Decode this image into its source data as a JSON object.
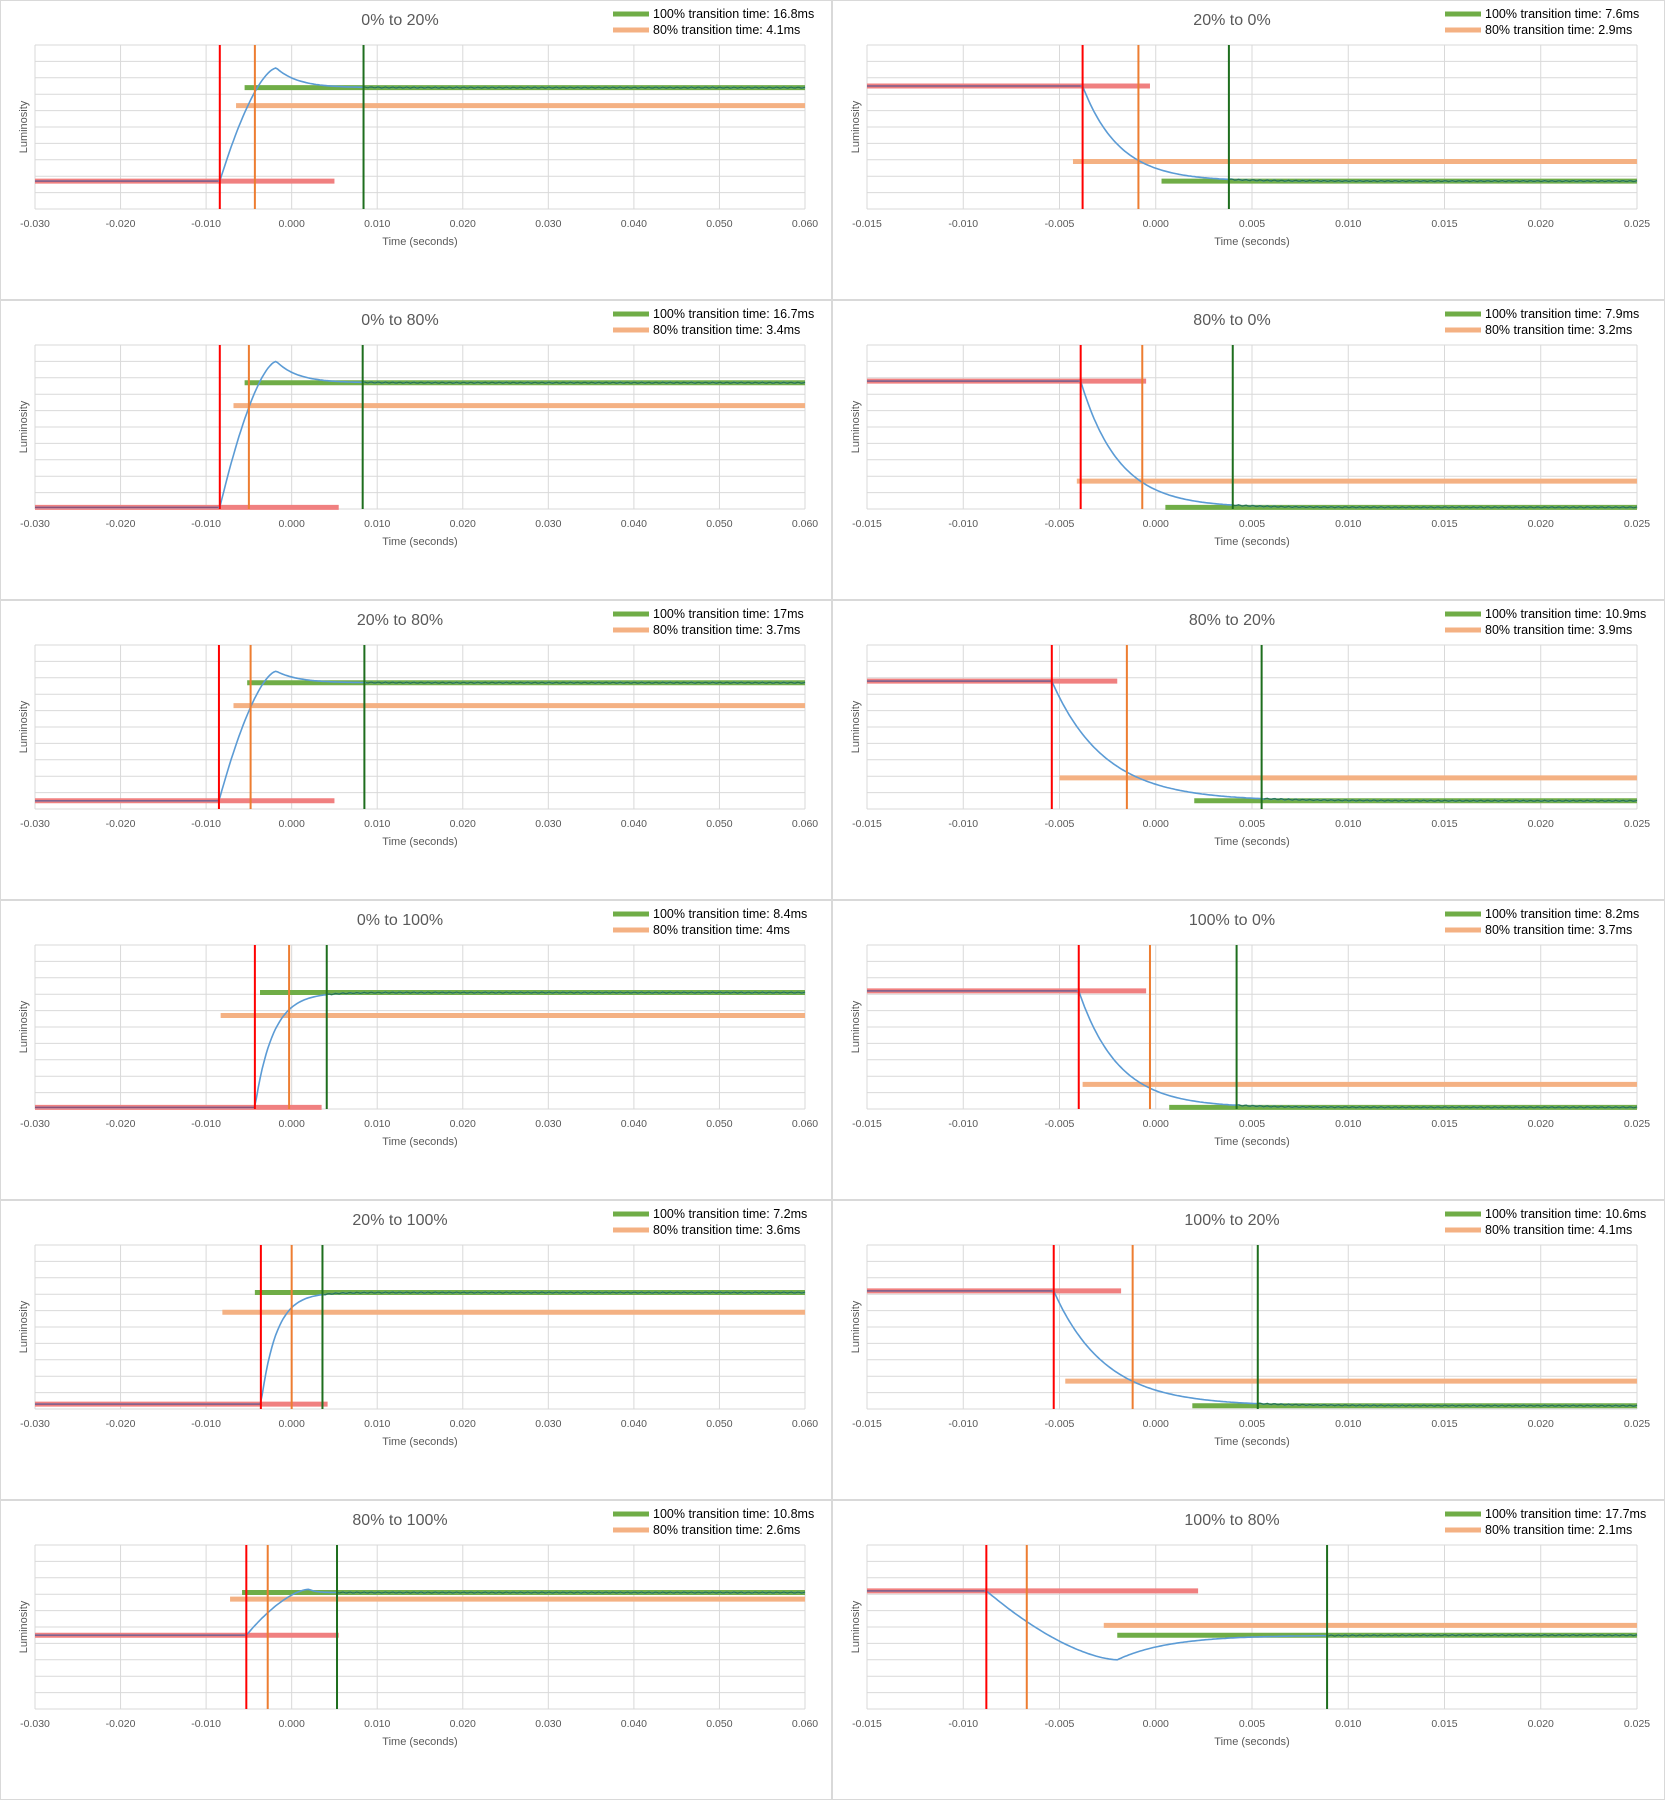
{
  "colors": {
    "curve": "#5b9bd5",
    "green_line": "#70ad47",
    "green_dark": "#1e6e1e",
    "orange_line": "#f4b183",
    "orange_vline": "#ed7d31",
    "red_line": "#f08080",
    "red_vline": "#ff0000",
    "grid": "#d9d9d9"
  },
  "chart_data": [
    {
      "type": "line",
      "title": "0% to 20%",
      "xlabel": "Time (seconds)",
      "ylabel": "Luminosity",
      "legend": [
        "100% transition time: 16.8ms",
        "80% transition time: 4.1ms"
      ],
      "xlim": [
        -0.03,
        0.06
      ],
      "xticks": [
        "-0.030",
        "-0.020",
        "-0.010",
        "0.000",
        "0.010",
        "0.020",
        "0.030",
        "0.040",
        "0.050",
        "0.060"
      ],
      "y_start": 0.17,
      "y_end": 0.74,
      "overshoot": 0.86,
      "peak_t": -0.0018,
      "red_x": -0.0084,
      "orange_x": -0.0043,
      "green_x": 0.0084,
      "red_seg": [
        -0.03,
        0.005
      ],
      "orange_seg": [
        -0.0065,
        0.06
      ],
      "orange_y": 0.63,
      "green_seg": [
        -0.0055,
        0.06
      ]
    },
    {
      "type": "line",
      "title": "20% to 0%",
      "xlabel": "Time (seconds)",
      "ylabel": "Luminosity",
      "legend": [
        "100% transition time: 7.6ms",
        "80% transition time: 2.9ms"
      ],
      "xlim": [
        -0.015,
        0.025
      ],
      "xticks": [
        "-0.015",
        "-0.010",
        "-0.005",
        "0.000",
        "0.005",
        "0.010",
        "0.015",
        "0.020",
        "0.025"
      ],
      "y_start": 0.75,
      "y_end": 0.17,
      "overshoot": null,
      "peak_t": null,
      "red_x": -0.0038,
      "orange_x": -0.0009,
      "green_x": 0.0038,
      "red_seg": [
        -0.015,
        -0.0003
      ],
      "orange_seg": [
        -0.0043,
        0.025
      ],
      "orange_y": 0.29,
      "green_seg": [
        0.0003,
        0.025
      ]
    },
    {
      "type": "line",
      "title": "0% to 80%",
      "xlabel": "Time (seconds)",
      "ylabel": "Luminosity",
      "legend": [
        "100% transition time: 16.7ms",
        "80% transition time: 3.4ms"
      ],
      "xlim": [
        -0.03,
        0.06
      ],
      "xticks": [
        "-0.030",
        "-0.020",
        "-0.010",
        "0.000",
        "0.010",
        "0.020",
        "0.030",
        "0.040",
        "0.050",
        "0.060"
      ],
      "y_start": 0.01,
      "y_end": 0.77,
      "overshoot": 0.9,
      "peak_t": -0.0018,
      "red_x": -0.0084,
      "orange_x": -0.005,
      "green_x": 0.0083,
      "red_seg": [
        -0.03,
        0.0055
      ],
      "orange_seg": [
        -0.0068,
        0.06
      ],
      "orange_y": 0.63,
      "green_seg": [
        -0.0055,
        0.06
      ]
    },
    {
      "type": "line",
      "title": "80% to 0%",
      "xlabel": "Time (seconds)",
      "ylabel": "Luminosity",
      "legend": [
        "100% transition time: 7.9ms",
        "80% transition time: 3.2ms"
      ],
      "xlim": [
        -0.015,
        0.025
      ],
      "xticks": [
        "-0.015",
        "-0.010",
        "-0.005",
        "0.000",
        "0.005",
        "0.010",
        "0.015",
        "0.020",
        "0.025"
      ],
      "y_start": 0.78,
      "y_end": 0.01,
      "overshoot": null,
      "peak_t": null,
      "red_x": -0.0039,
      "orange_x": -0.0007,
      "green_x": 0.004,
      "red_seg": [
        -0.015,
        -0.0005
      ],
      "orange_seg": [
        -0.0041,
        0.025
      ],
      "orange_y": 0.17,
      "green_seg": [
        0.0005,
        0.025
      ]
    },
    {
      "type": "line",
      "title": "20% to 80%",
      "xlabel": "Time (seconds)",
      "ylabel": "Luminosity",
      "legend": [
        "100% transition time: 17ms",
        "80% transition time: 3.7ms"
      ],
      "xlim": [
        -0.03,
        0.06
      ],
      "xticks": [
        "-0.030",
        "-0.020",
        "-0.010",
        "0.000",
        "0.010",
        "0.020",
        "0.030",
        "0.040",
        "0.050",
        "0.060"
      ],
      "y_start": 0.05,
      "y_end": 0.77,
      "overshoot": 0.84,
      "peak_t": -0.0018,
      "red_x": -0.0085,
      "orange_x": -0.0048,
      "green_x": 0.0085,
      "red_seg": [
        -0.03,
        0.005
      ],
      "orange_seg": [
        -0.0068,
        0.06
      ],
      "orange_y": 0.63,
      "green_seg": [
        -0.0052,
        0.06
      ]
    },
    {
      "type": "line",
      "title": "80% to 20%",
      "xlabel": "Time (seconds)",
      "ylabel": "Luminosity",
      "legend": [
        "100% transition time: 10.9ms",
        "80% transition time: 3.9ms"
      ],
      "xlim": [
        -0.015,
        0.025
      ],
      "xticks": [
        "-0.015",
        "-0.010",
        "-0.005",
        "0.000",
        "0.005",
        "0.010",
        "0.015",
        "0.020",
        "0.025"
      ],
      "y_start": 0.78,
      "y_end": 0.05,
      "overshoot": null,
      "peak_t": null,
      "red_x": -0.0054,
      "orange_x": -0.0015,
      "green_x": 0.0055,
      "red_seg": [
        -0.015,
        -0.002
      ],
      "orange_seg": [
        -0.005,
        0.025
      ],
      "orange_y": 0.19,
      "green_seg": [
        0.002,
        0.025
      ]
    },
    {
      "type": "line",
      "title": "0% to 100%",
      "xlabel": "Time (seconds)",
      "ylabel": "Luminosity",
      "legend": [
        "100% transition time: 8.4ms",
        "80% transition time: 4ms"
      ],
      "xlim": [
        -0.03,
        0.06
      ],
      "xticks": [
        "-0.030",
        "-0.020",
        "-0.010",
        "0.000",
        "0.010",
        "0.020",
        "0.030",
        "0.040",
        "0.050",
        "0.060"
      ],
      "y_start": 0.01,
      "y_end": 0.71,
      "overshoot": null,
      "peak_t": null,
      "red_x": -0.0043,
      "orange_x": -0.0003,
      "green_x": 0.0041,
      "red_seg": [
        -0.03,
        0.0035
      ],
      "orange_seg": [
        -0.0083,
        0.06
      ],
      "orange_y": 0.57,
      "green_seg": [
        -0.0037,
        0.06
      ]
    },
    {
      "type": "line",
      "title": "100% to 0%",
      "xlabel": "Time (seconds)",
      "ylabel": "Luminosity",
      "legend": [
        "100% transition time: 8.2ms",
        "80% transition time: 3.7ms"
      ],
      "xlim": [
        -0.015,
        0.025
      ],
      "xticks": [
        "-0.015",
        "-0.010",
        "-0.005",
        "0.000",
        "0.005",
        "0.010",
        "0.015",
        "0.020",
        "0.025"
      ],
      "y_start": 0.72,
      "y_end": 0.01,
      "overshoot": null,
      "peak_t": null,
      "red_x": -0.004,
      "orange_x": -0.0003,
      "green_x": 0.0042,
      "red_seg": [
        -0.015,
        -0.0005
      ],
      "orange_seg": [
        -0.0038,
        0.025
      ],
      "orange_y": 0.15,
      "green_seg": [
        0.0007,
        0.025
      ]
    },
    {
      "type": "line",
      "title": "20% to 100%",
      "xlabel": "Time (seconds)",
      "ylabel": "Luminosity",
      "legend": [
        "100% transition time: 7.2ms",
        "80% transition time: 3.6ms"
      ],
      "xlim": [
        -0.03,
        0.06
      ],
      "xticks": [
        "-0.030",
        "-0.020",
        "-0.010",
        "0.000",
        "0.010",
        "0.020",
        "0.030",
        "0.040",
        "0.050",
        "0.060"
      ],
      "y_start": 0.03,
      "y_end": 0.71,
      "overshoot": null,
      "peak_t": null,
      "red_x": -0.0036,
      "orange_x": 0.0,
      "green_x": 0.0036,
      "red_seg": [
        -0.03,
        0.0042
      ],
      "orange_seg": [
        -0.0081,
        0.06
      ],
      "orange_y": 0.59,
      "green_seg": [
        -0.0043,
        0.06
      ]
    },
    {
      "type": "line",
      "title": "100% to 20%",
      "xlabel": "Time (seconds)",
      "ylabel": "Luminosity",
      "legend": [
        "100% transition time: 10.6ms",
        "80% transition time: 4.1ms"
      ],
      "xlim": [
        -0.015,
        0.025
      ],
      "xticks": [
        "-0.015",
        "-0.010",
        "-0.005",
        "0.000",
        "0.005",
        "0.010",
        "0.015",
        "0.020",
        "0.025"
      ],
      "y_start": 0.72,
      "y_end": 0.02,
      "overshoot": null,
      "peak_t": null,
      "red_x": -0.0053,
      "orange_x": -0.0012,
      "green_x": 0.0053,
      "red_seg": [
        -0.015,
        -0.0018
      ],
      "orange_seg": [
        -0.0047,
        0.025
      ],
      "orange_y": 0.17,
      "green_seg": [
        0.0019,
        0.025
      ]
    },
    {
      "type": "line",
      "title": "80% to 100%",
      "xlabel": "Time (seconds)",
      "ylabel": "Luminosity",
      "legend": [
        "100% transition time: 10.8ms",
        "80% transition time: 2.6ms"
      ],
      "xlim": [
        -0.03,
        0.06
      ],
      "xticks": [
        "-0.030",
        "-0.020",
        "-0.010",
        "0.000",
        "0.010",
        "0.020",
        "0.030",
        "0.040",
        "0.050",
        "0.060"
      ],
      "y_start": 0.45,
      "y_end": 0.71,
      "overshoot": 0.73,
      "peak_t": 0.002,
      "red_x": -0.0053,
      "orange_x": -0.0028,
      "green_x": 0.0053,
      "red_seg": [
        -0.03,
        0.0055
      ],
      "orange_seg": [
        -0.0072,
        0.06
      ],
      "orange_y": 0.67,
      "green_seg": [
        -0.0058,
        0.06
      ]
    },
    {
      "type": "line",
      "title": "100% to 80%",
      "xlabel": "Time (seconds)",
      "ylabel": "Luminosity",
      "legend": [
        "100% transition time: 17.7ms",
        "80% transition time: 2.1ms"
      ],
      "xlim": [
        -0.015,
        0.025
      ],
      "xticks": [
        "-0.015",
        "-0.010",
        "-0.005",
        "0.000",
        "0.005",
        "0.010",
        "0.015",
        "0.020",
        "0.025"
      ],
      "y_start": 0.72,
      "y_end": 0.45,
      "overshoot": 0.3,
      "peak_t": -0.002,
      "red_x": -0.0088,
      "orange_x": -0.0067,
      "green_x": 0.0089,
      "red_seg": [
        -0.015,
        0.0022
      ],
      "orange_seg": [
        -0.0027,
        0.025
      ],
      "orange_y": 0.51,
      "green_seg": [
        -0.002,
        0.025
      ]
    }
  ]
}
